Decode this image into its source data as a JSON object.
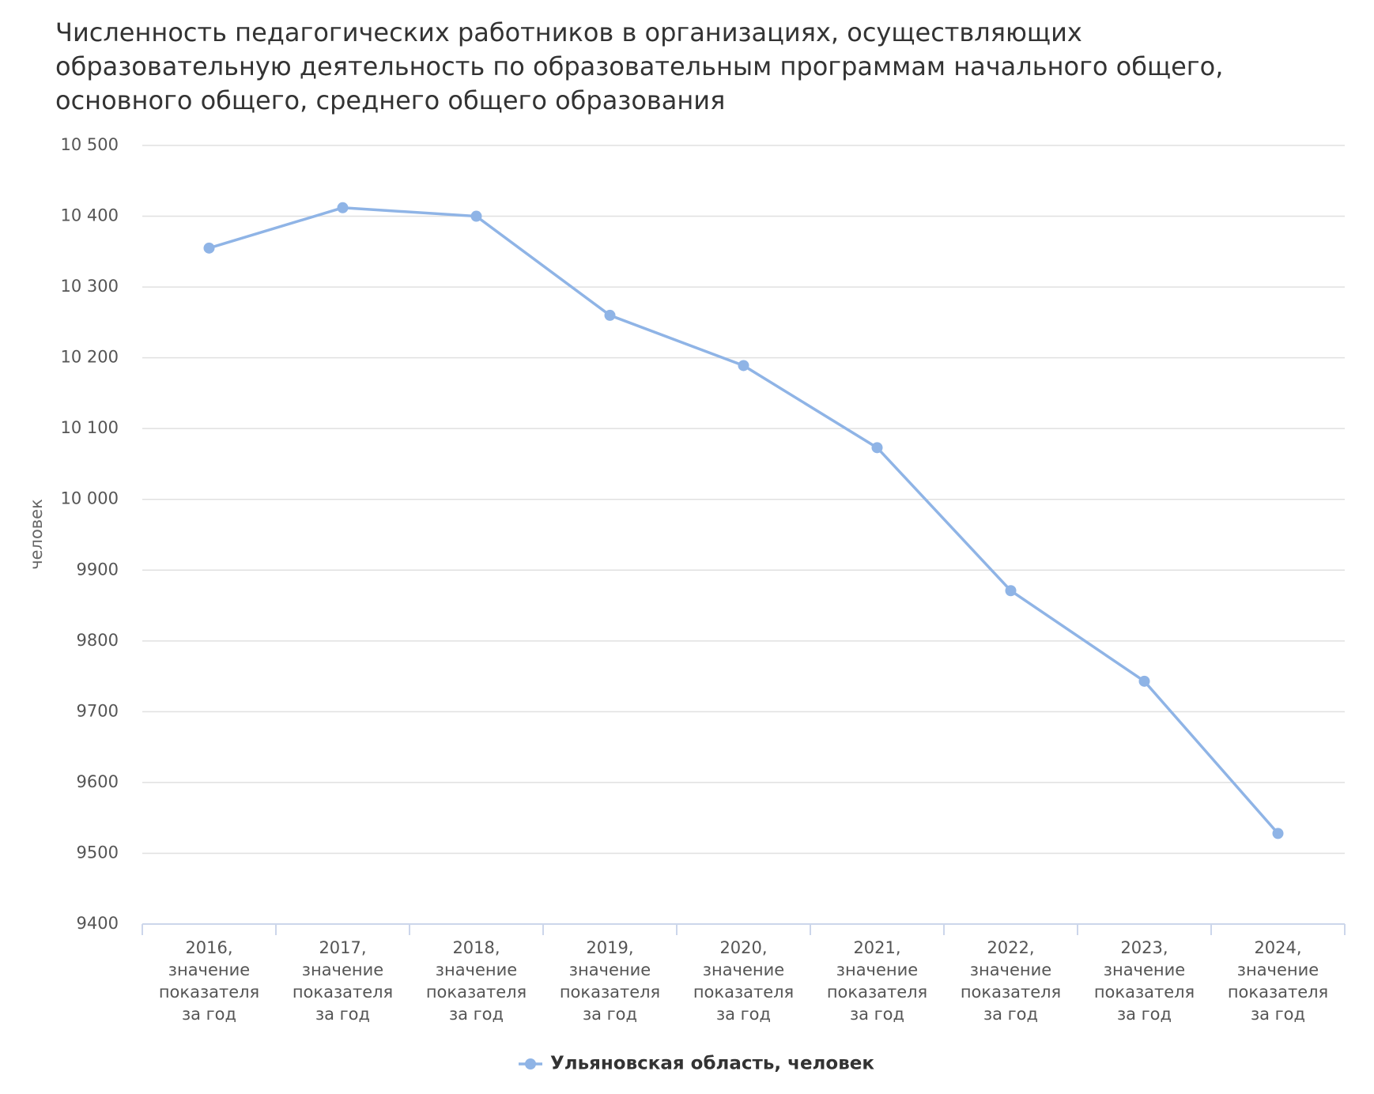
{
  "chart_data": {
    "type": "line",
    "title": "Численность педагогических работников в организациях, осуществляющих образовательную деятельность по образовательным программам начального общего, основного общего, среднего общего образования",
    "y_label": "человек",
    "categories": [
      "2016, значение показателя за год",
      "2017, значение показателя за год",
      "2018, значение показателя за год",
      "2019, значение показателя за год",
      "2020, значение показателя за год",
      "2021, значение показателя за год",
      "2022, значение показателя за год",
      "2023, значение показателя за год",
      "2024, значение показателя за год"
    ],
    "series": [
      {
        "name": "Ульяновская область, человек",
        "color": "#8fb4e6",
        "values": [
          10355,
          10412,
          10400,
          10260,
          10189,
          10073,
          9871,
          9743,
          9528
        ]
      }
    ],
    "ylim": [
      9400,
      10500
    ],
    "yticks": [
      9400,
      9500,
      9600,
      9700,
      9800,
      9900,
      {
        "value": 10000,
        "label": "10 000"
      },
      {
        "value": 10100,
        "label": "10 100"
      },
      {
        "value": 10200,
        "label": "10 200"
      },
      {
        "value": 10300,
        "label": "10 300"
      },
      {
        "value": 10400,
        "label": "10 400"
      },
      {
        "value": 10500,
        "label": "10 500"
      }
    ],
    "grid": true,
    "legend": "bottom"
  }
}
